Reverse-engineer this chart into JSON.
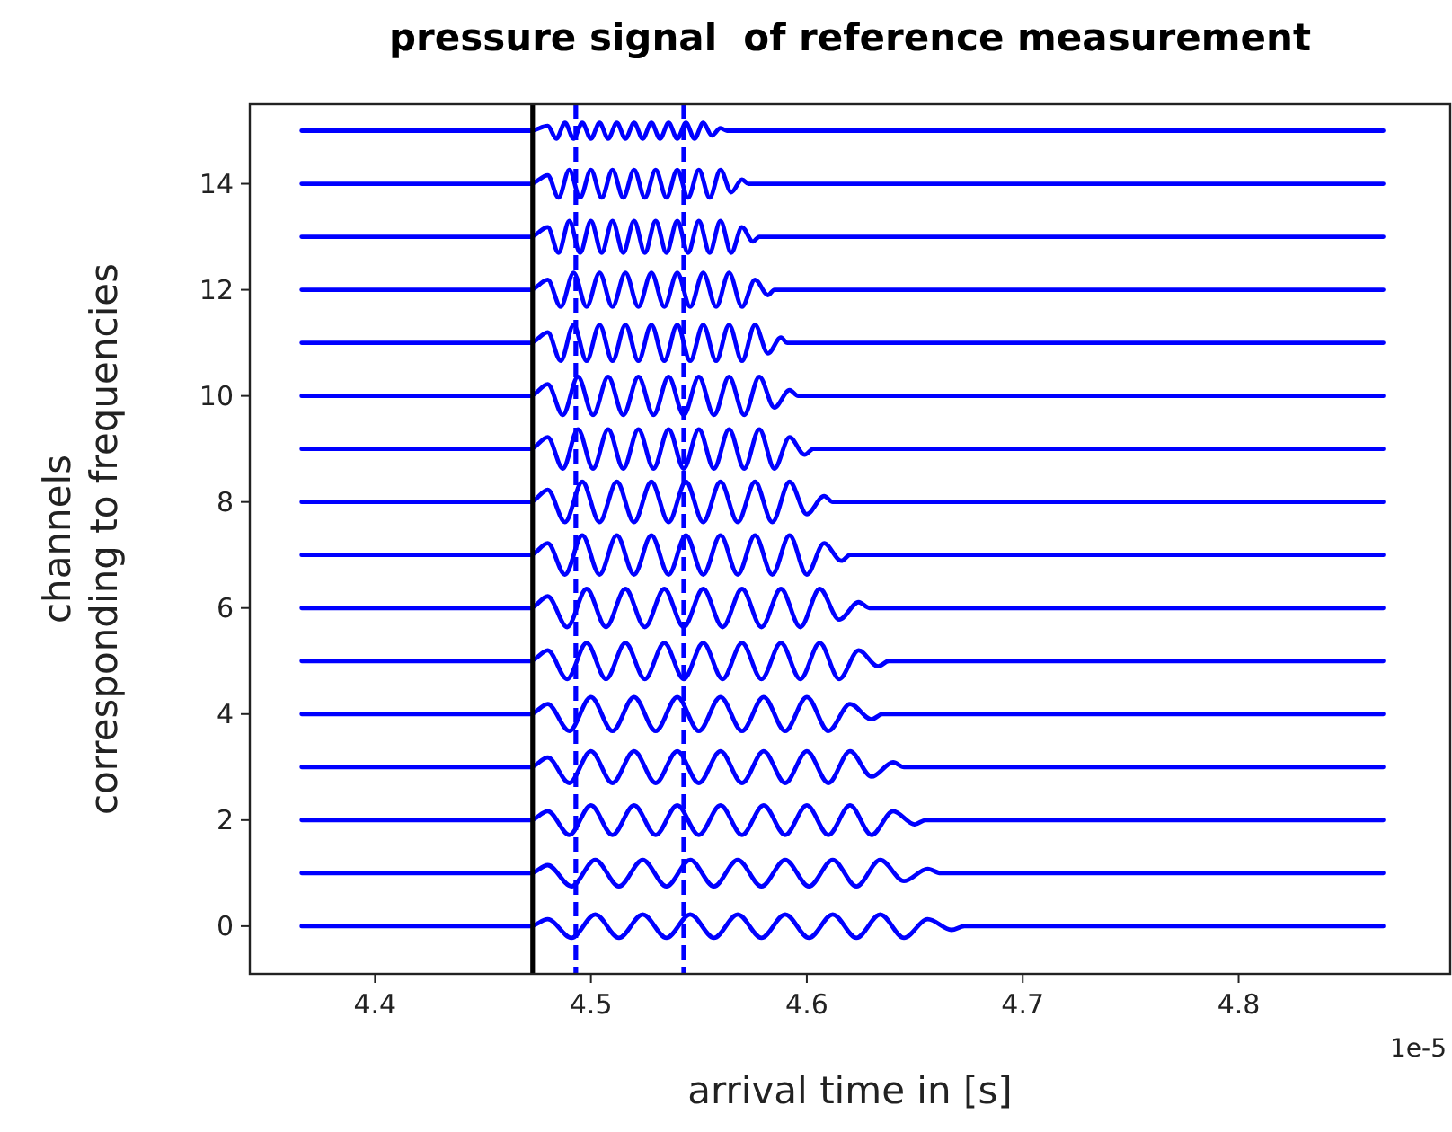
{
  "chart_data": {
    "type": "line",
    "title": "pressure signal  of reference measurement",
    "xlabel": "arrival time in [s]",
    "ylabel": "channels\ncorresponding to frequencies",
    "annotations": [
      "1e-5"
    ],
    "xlim": [
      4.342,
      4.898
    ],
    "xticks": [
      4.4,
      4.5,
      4.6,
      4.7,
      4.8
    ],
    "ylim": [
      -0.9,
      15.5
    ],
    "yticks": [
      0,
      2,
      4,
      6,
      8,
      10,
      12,
      14
    ],
    "grid": false,
    "marker": "none",
    "line_style": "solid",
    "ref_lines": [
      {
        "axis": "x",
        "value": 4.473,
        "color": "#000000",
        "line_style": "solid"
      },
      {
        "axis": "x",
        "value": 4.493,
        "color": "#0000ff",
        "line_style": "dashed"
      },
      {
        "axis": "x",
        "value": 4.543,
        "color": "#0000ff",
        "line_style": "dashed"
      }
    ],
    "series": [
      {
        "color": "#0000ff",
        "x": [
          4.366,
          4.472,
          4.48,
          4.491,
          4.502,
          4.513,
          4.524,
          4.535,
          4.546,
          4.557,
          4.568,
          4.579,
          4.59,
          4.601,
          4.612,
          4.623,
          4.634,
          4.645,
          4.656,
          4.667,
          4.673,
          4.867
        ],
        "values": [
          0,
          0,
          0.13,
          -0.22,
          0.22,
          -0.22,
          0.22,
          -0.22,
          0.22,
          -0.22,
          0.22,
          -0.22,
          0.22,
          -0.22,
          0.22,
          -0.22,
          0.22,
          -0.22,
          0.13,
          -0.07,
          0,
          0
        ]
      },
      {
        "color": "#0000ff",
        "x": [
          4.366,
          4.472,
          4.48,
          4.491,
          4.502,
          4.513,
          4.524,
          4.535,
          4.546,
          4.557,
          4.568,
          4.579,
          4.59,
          4.601,
          4.612,
          4.623,
          4.634,
          4.645,
          4.656,
          4.662,
          4.867
        ],
        "values": [
          1,
          1,
          1.15,
          0.75,
          1.25,
          0.75,
          1.25,
          0.75,
          1.25,
          0.75,
          1.25,
          0.75,
          1.25,
          0.75,
          1.25,
          0.75,
          1.25,
          0.85,
          1.08,
          1,
          1
        ]
      },
      {
        "color": "#0000ff",
        "x": [
          4.366,
          4.472,
          4.48,
          4.49,
          4.5,
          4.51,
          4.52,
          4.53,
          4.54,
          4.55,
          4.56,
          4.57,
          4.58,
          4.59,
          4.6,
          4.61,
          4.62,
          4.63,
          4.64,
          4.65,
          4.655,
          4.867
        ],
        "values": [
          2,
          2,
          2.17,
          1.72,
          2.28,
          1.72,
          2.28,
          1.72,
          2.28,
          1.72,
          2.28,
          1.72,
          2.28,
          1.72,
          2.28,
          1.72,
          2.28,
          1.72,
          2.17,
          1.92,
          2,
          2
        ]
      },
      {
        "color": "#0000ff",
        "x": [
          4.366,
          4.472,
          4.48,
          4.49,
          4.5,
          4.51,
          4.52,
          4.53,
          4.54,
          4.55,
          4.56,
          4.57,
          4.58,
          4.59,
          4.6,
          4.61,
          4.62,
          4.63,
          4.64,
          4.645,
          4.867
        ],
        "values": [
          3,
          3,
          3.18,
          2.7,
          3.3,
          2.7,
          3.3,
          2.7,
          3.3,
          2.7,
          3.3,
          2.7,
          3.3,
          2.7,
          3.3,
          2.7,
          3.3,
          2.82,
          3.09,
          3,
          3
        ]
      },
      {
        "color": "#0000ff",
        "x": [
          4.366,
          4.472,
          4.48,
          4.49,
          4.5,
          4.51,
          4.52,
          4.53,
          4.54,
          4.55,
          4.56,
          4.57,
          4.58,
          4.59,
          4.6,
          4.61,
          4.62,
          4.63,
          4.635,
          4.867
        ],
        "values": [
          4,
          4,
          4.19,
          3.68,
          4.32,
          3.68,
          4.32,
          3.68,
          4.32,
          3.68,
          4.32,
          3.68,
          4.32,
          3.68,
          4.32,
          3.68,
          4.19,
          3.9,
          4,
          4
        ]
      },
      {
        "color": "#0000ff",
        "x": [
          4.366,
          4.472,
          4.48,
          4.489,
          4.498,
          4.507,
          4.516,
          4.525,
          4.534,
          4.543,
          4.552,
          4.561,
          4.57,
          4.579,
          4.588,
          4.597,
          4.606,
          4.615,
          4.624,
          4.633,
          4.638,
          4.867
        ],
        "values": [
          5,
          5,
          5.2,
          4.66,
          5.34,
          4.66,
          5.34,
          4.66,
          5.34,
          4.66,
          5.34,
          4.66,
          5.34,
          4.66,
          5.34,
          4.66,
          5.34,
          4.66,
          5.2,
          4.9,
          5,
          5
        ]
      },
      {
        "color": "#0000ff",
        "x": [
          4.366,
          4.472,
          4.48,
          4.489,
          4.498,
          4.507,
          4.516,
          4.525,
          4.534,
          4.543,
          4.552,
          4.561,
          4.57,
          4.579,
          4.588,
          4.597,
          4.606,
          4.615,
          4.624,
          4.629,
          4.867
        ],
        "values": [
          6,
          6,
          6.22,
          5.64,
          6.36,
          5.64,
          6.36,
          5.64,
          6.36,
          5.64,
          6.36,
          5.64,
          6.36,
          5.64,
          6.36,
          5.64,
          6.36,
          5.78,
          6.11,
          6,
          6
        ]
      },
      {
        "color": "#0000ff",
        "x": [
          4.366,
          4.472,
          4.48,
          4.488,
          4.496,
          4.504,
          4.512,
          4.52,
          4.528,
          4.536,
          4.544,
          4.552,
          4.56,
          4.568,
          4.576,
          4.584,
          4.592,
          4.6,
          4.608,
          4.616,
          4.62,
          4.867
        ],
        "values": [
          7,
          7,
          7.22,
          6.63,
          7.37,
          6.63,
          7.37,
          6.63,
          7.37,
          6.63,
          7.37,
          6.63,
          7.37,
          6.63,
          7.37,
          6.63,
          7.37,
          6.63,
          7.22,
          6.89,
          7,
          7
        ]
      },
      {
        "color": "#0000ff",
        "x": [
          4.366,
          4.472,
          4.48,
          4.488,
          4.496,
          4.504,
          4.512,
          4.52,
          4.528,
          4.536,
          4.544,
          4.552,
          4.56,
          4.568,
          4.576,
          4.584,
          4.592,
          4.6,
          4.608,
          4.612,
          4.867
        ],
        "values": [
          8,
          8,
          8.23,
          7.62,
          8.38,
          7.62,
          8.38,
          7.62,
          8.38,
          7.62,
          8.38,
          7.62,
          8.38,
          7.62,
          8.38,
          7.62,
          8.38,
          7.77,
          8.11,
          8,
          8
        ]
      },
      {
        "color": "#0000ff",
        "x": [
          4.366,
          4.472,
          4.48,
          4.487,
          4.494,
          4.501,
          4.508,
          4.515,
          4.522,
          4.529,
          4.536,
          4.543,
          4.55,
          4.557,
          4.564,
          4.571,
          4.578,
          4.585,
          4.592,
          4.599,
          4.603,
          4.867
        ],
        "values": [
          9,
          9,
          9.22,
          8.63,
          9.37,
          8.63,
          9.37,
          8.63,
          9.37,
          8.63,
          9.37,
          8.63,
          9.37,
          8.63,
          9.37,
          8.63,
          9.37,
          8.63,
          9.22,
          8.89,
          9,
          9
        ]
      },
      {
        "color": "#0000ff",
        "x": [
          4.366,
          4.472,
          4.48,
          4.487,
          4.494,
          4.501,
          4.508,
          4.515,
          4.522,
          4.529,
          4.536,
          4.543,
          4.55,
          4.557,
          4.564,
          4.571,
          4.578,
          4.585,
          4.592,
          4.596,
          4.867
        ],
        "values": [
          10,
          10,
          10.22,
          9.64,
          10.36,
          9.64,
          10.36,
          9.64,
          10.36,
          9.64,
          10.36,
          9.64,
          10.36,
          9.64,
          10.36,
          9.64,
          10.36,
          9.78,
          10.11,
          10,
          10
        ]
      },
      {
        "color": "#0000ff",
        "x": [
          4.366,
          4.472,
          4.48,
          4.486,
          4.492,
          4.498,
          4.504,
          4.51,
          4.516,
          4.522,
          4.528,
          4.534,
          4.54,
          4.546,
          4.552,
          4.558,
          4.564,
          4.57,
          4.576,
          4.582,
          4.588,
          4.591,
          4.867
        ],
        "values": [
          11,
          11,
          11.2,
          10.66,
          11.34,
          10.66,
          11.34,
          10.66,
          11.34,
          10.66,
          11.34,
          10.66,
          11.34,
          10.66,
          11.34,
          10.66,
          11.34,
          10.66,
          11.34,
          10.8,
          11.1,
          11,
          11
        ]
      },
      {
        "color": "#0000ff",
        "x": [
          4.366,
          4.472,
          4.48,
          4.486,
          4.492,
          4.498,
          4.504,
          4.51,
          4.516,
          4.522,
          4.528,
          4.534,
          4.54,
          4.546,
          4.552,
          4.558,
          4.564,
          4.57,
          4.576,
          4.582,
          4.585,
          4.867
        ],
        "values": [
          12,
          12,
          12.19,
          11.68,
          12.32,
          11.68,
          12.32,
          11.68,
          12.32,
          11.68,
          12.32,
          11.68,
          12.32,
          11.68,
          12.32,
          11.68,
          12.32,
          11.68,
          12.19,
          11.9,
          12,
          12
        ]
      },
      {
        "color": "#0000ff",
        "x": [
          4.366,
          4.472,
          4.48,
          4.485,
          4.49,
          4.495,
          4.5,
          4.505,
          4.51,
          4.515,
          4.52,
          4.525,
          4.53,
          4.535,
          4.54,
          4.545,
          4.55,
          4.555,
          4.56,
          4.565,
          4.57,
          4.575,
          4.578,
          4.867
        ],
        "values": [
          13,
          13,
          13.18,
          12.7,
          13.3,
          12.7,
          13.3,
          12.7,
          13.3,
          12.7,
          13.3,
          12.7,
          13.3,
          12.7,
          13.3,
          12.7,
          13.3,
          12.7,
          13.3,
          12.7,
          13.18,
          12.91,
          13,
          13
        ]
      },
      {
        "color": "#0000ff",
        "x": [
          4.366,
          4.472,
          4.48,
          4.485,
          4.49,
          4.495,
          4.5,
          4.505,
          4.51,
          4.515,
          4.52,
          4.525,
          4.53,
          4.535,
          4.54,
          4.545,
          4.55,
          4.555,
          4.56,
          4.565,
          4.57,
          4.573,
          4.867
        ],
        "values": [
          14,
          14,
          14.16,
          13.74,
          14.26,
          13.74,
          14.26,
          13.74,
          14.26,
          13.74,
          14.26,
          13.74,
          14.26,
          13.74,
          14.26,
          13.74,
          14.26,
          13.74,
          14.26,
          13.84,
          14.08,
          14,
          14
        ]
      },
      {
        "color": "#0000ff",
        "x": [
          4.366,
          4.472,
          4.48,
          4.484,
          4.488,
          4.492,
          4.496,
          4.5,
          4.504,
          4.508,
          4.512,
          4.516,
          4.52,
          4.524,
          4.528,
          4.532,
          4.536,
          4.54,
          4.544,
          4.548,
          4.552,
          4.556,
          4.56,
          4.563,
          4.867
        ],
        "values": [
          15,
          15,
          15.09,
          14.85,
          15.15,
          14.85,
          15.15,
          14.85,
          15.15,
          14.85,
          15.15,
          14.85,
          15.15,
          14.85,
          15.15,
          14.85,
          15.15,
          14.85,
          15.15,
          14.85,
          15.15,
          14.91,
          15.05,
          15,
          15
        ]
      }
    ]
  }
}
